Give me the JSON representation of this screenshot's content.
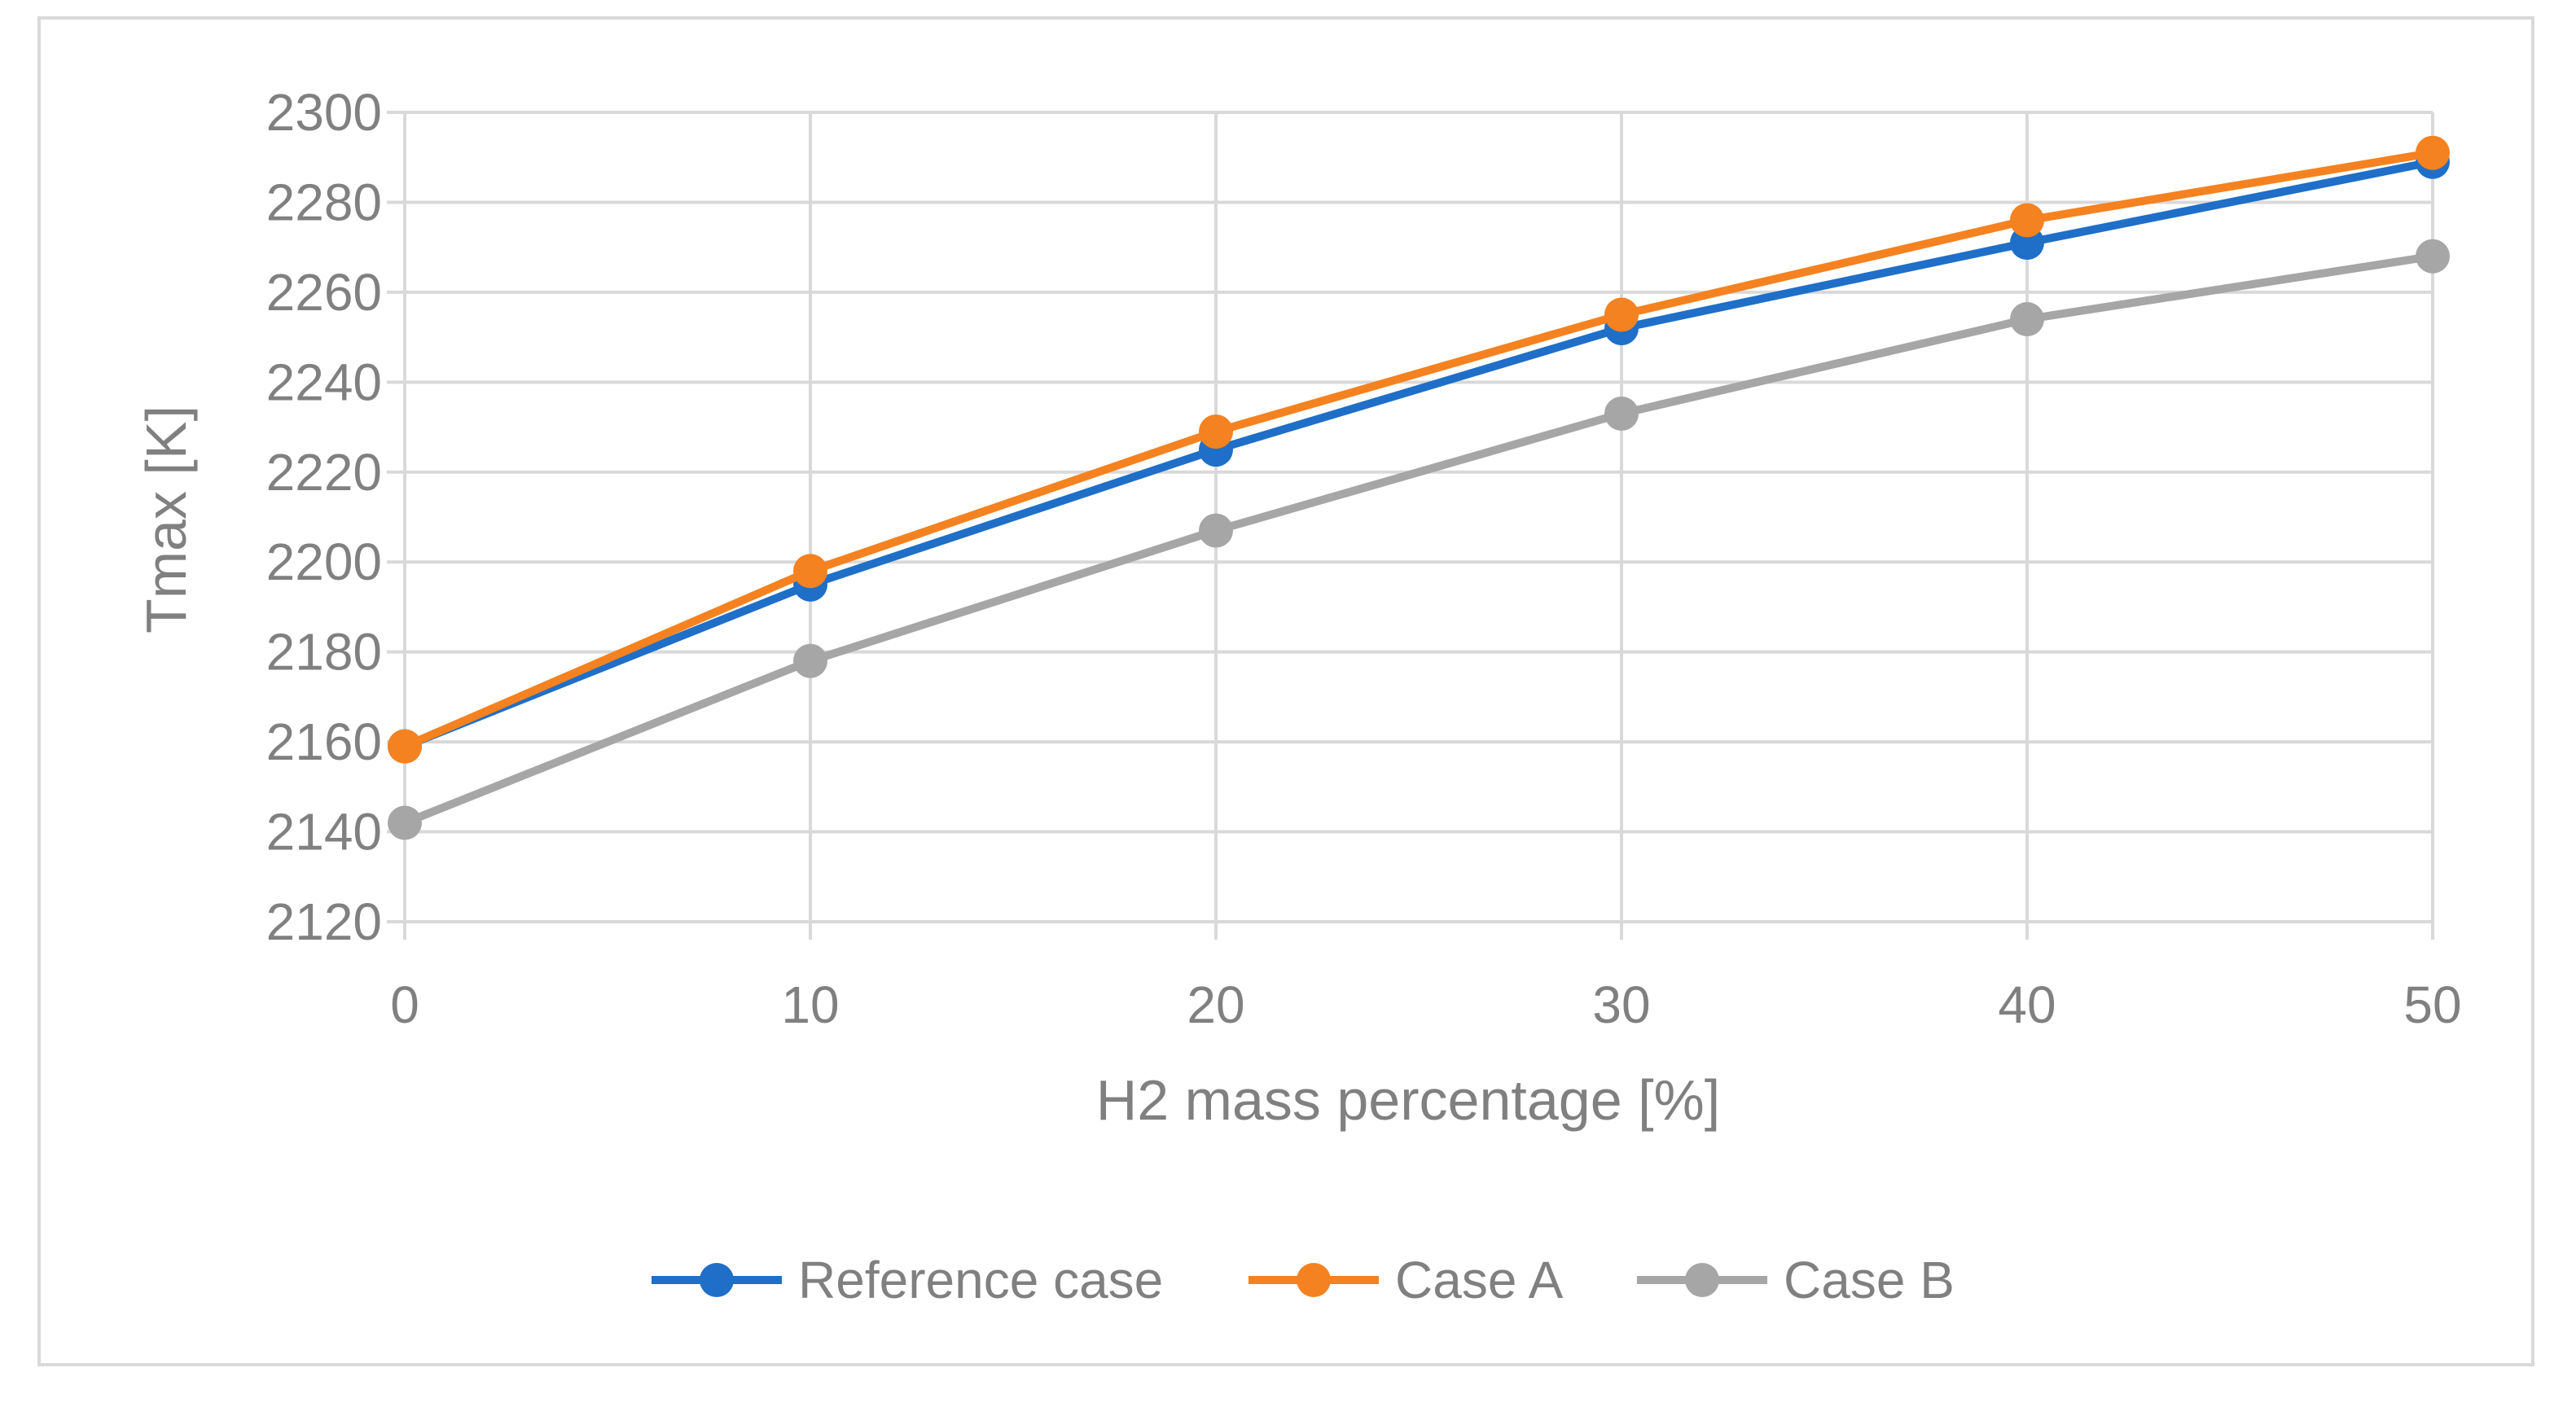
{
  "chart_data": {
    "type": "line",
    "title": "",
    "xlabel": "H2 mass percentage [%]",
    "ylabel": "Tmax [K]",
    "x": [
      0,
      10,
      20,
      30,
      40,
      50
    ],
    "xlim": [
      0,
      50
    ],
    "ylim": [
      2120,
      2300
    ],
    "xticks": [
      0,
      10,
      20,
      30,
      40,
      50
    ],
    "yticks": [
      2120,
      2140,
      2160,
      2180,
      2200,
      2220,
      2240,
      2260,
      2280,
      2300
    ],
    "grid": true,
    "legend_position": "bottom",
    "series": [
      {
        "name": "Reference case",
        "color": "#1F6FC8",
        "values": [
          2159,
          2195,
          2225,
          2252,
          2271,
          2289
        ]
      },
      {
        "name": "Case A",
        "color": "#F58220",
        "values": [
          2159,
          2198,
          2229,
          2255,
          2276,
          2291
        ]
      },
      {
        "name": "Case B",
        "color": "#A6A6A6",
        "values": [
          2142,
          2178,
          2207,
          2233,
          2254,
          2268
        ]
      }
    ]
  }
}
